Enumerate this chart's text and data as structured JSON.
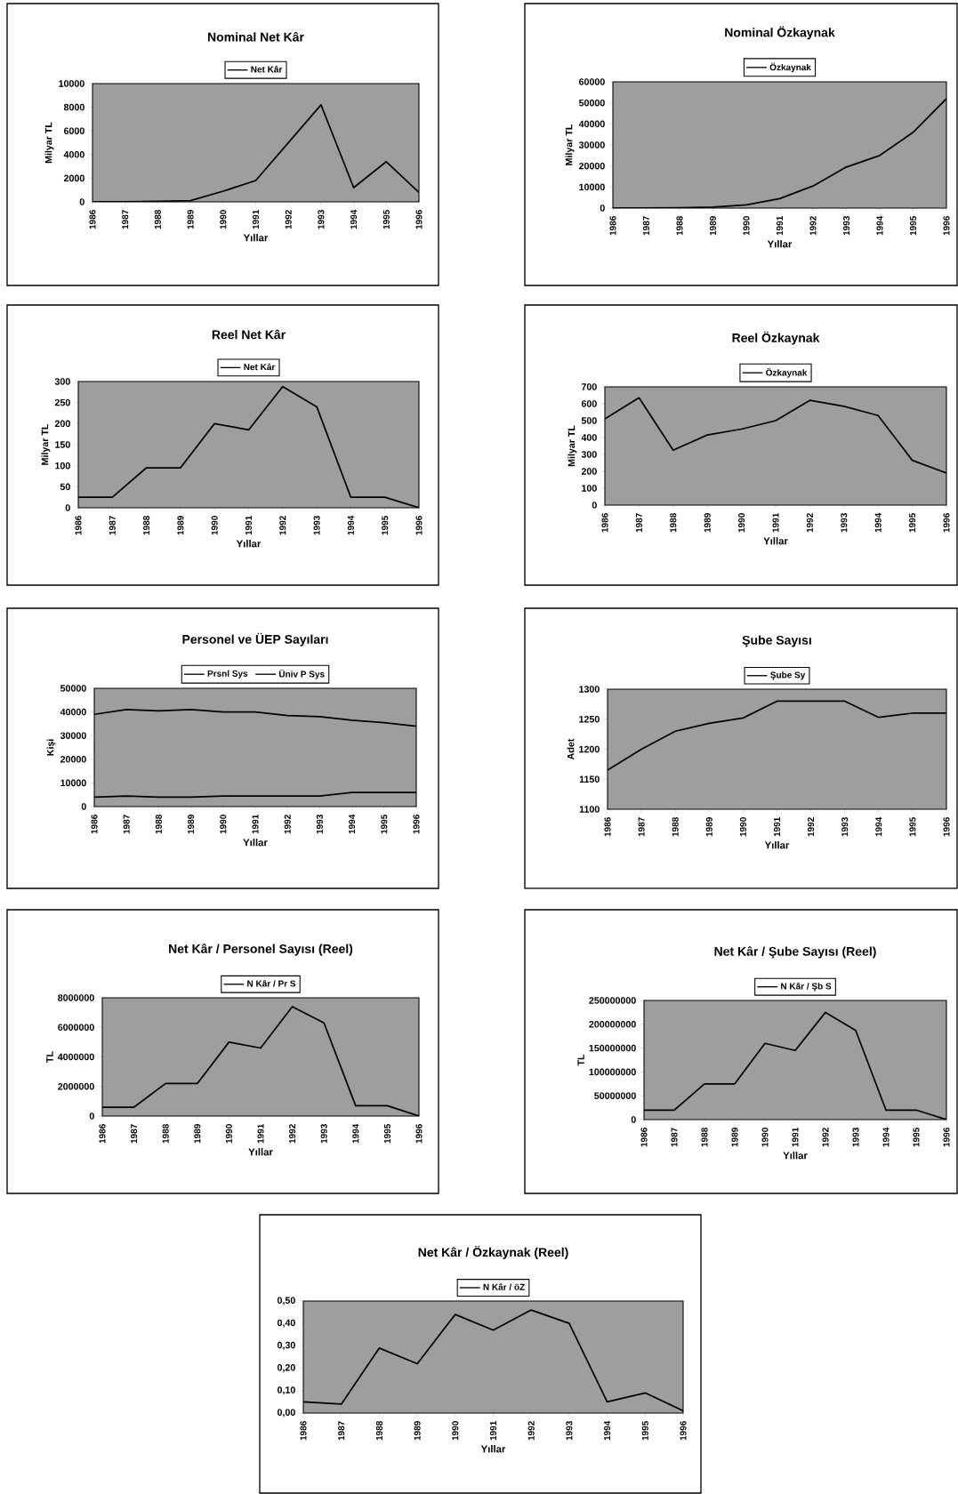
{
  "chart_data": [
    {
      "type": "line",
      "title": "Nominal Net Kâr",
      "xlabel": "Yıllar",
      "ylabel": "Milyar TL",
      "legend": "top",
      "categories": [
        "1986",
        "1987",
        "1988",
        "1989",
        "1990",
        "1991",
        "1992",
        "1993",
        "1994",
        "1995",
        "1996"
      ],
      "ylim": [
        0,
        10000
      ],
      "yticks": [
        0,
        2000,
        4000,
        6000,
        8000,
        10000
      ],
      "series": [
        {
          "name": "Net Kâr",
          "color": "#000000",
          "values": [
            0,
            10,
            50,
            100,
            900,
            1800,
            5000,
            8200,
            1200,
            3400,
            800
          ]
        }
      ]
    },
    {
      "type": "line",
      "title": "Nominal Özkaynak",
      "xlabel": "Yıllar",
      "ylabel": "Milyar TL",
      "legend": "top",
      "categories": [
        "1986",
        "1987",
        "1988",
        "1989",
        "1990",
        "1991",
        "1992",
        "1993",
        "1994",
        "1995",
        "1996"
      ],
      "ylim": [
        0,
        60000
      ],
      "yticks": [
        0,
        10000,
        20000,
        30000,
        40000,
        50000,
        60000
      ],
      "series": [
        {
          "name": "Özkaynak",
          "color": "#000000",
          "values": [
            0,
            50,
            150,
            500,
            1500,
            4500,
            10500,
            19500,
            25000,
            36000,
            52000
          ]
        }
      ]
    },
    {
      "type": "line",
      "title": "Reel Net Kâr",
      "xlabel": "Yıllar",
      "ylabel": "Milyar TL",
      "legend": "top",
      "categories": [
        "1986",
        "1987",
        "1988",
        "1989",
        "1990",
        "1991",
        "1992",
        "1993",
        "1994",
        "1995",
        "1996"
      ],
      "ylim": [
        0,
        300
      ],
      "yticks": [
        0,
        50,
        100,
        150,
        200,
        250,
        300
      ],
      "series": [
        {
          "name": "Net Kâr",
          "color": "#000000",
          "values": [
            25,
            25,
            95,
            95,
            200,
            185,
            288,
            240,
            25,
            25,
            0
          ]
        }
      ]
    },
    {
      "type": "line",
      "title": "Reel Özkaynak",
      "xlabel": "Yıllar",
      "ylabel": "Milyar TL",
      "legend": "top",
      "categories": [
        "1986",
        "1987",
        "1988",
        "1989",
        "1990",
        "1991",
        "1992",
        "1993",
        "1994",
        "1995",
        "1996"
      ],
      "ylim": [
        0,
        700
      ],
      "yticks": [
        0,
        100,
        200,
        300,
        400,
        500,
        600,
        700
      ],
      "series": [
        {
          "name": "Özkaynak",
          "color": "#000000",
          "values": [
            510,
            635,
            325,
            415,
            450,
            500,
            620,
            585,
            530,
            265,
            190
          ]
        }
      ]
    },
    {
      "type": "line",
      "title": "Personel ve ÜEP Sayıları",
      "xlabel": "Yıllar",
      "ylabel": "Kişi",
      "legend": "top",
      "categories": [
        "1986",
        "1987",
        "1988",
        "1989",
        "1990",
        "1991",
        "1992",
        "1993",
        "1994",
        "1995",
        "1996"
      ],
      "ylim": [
        0,
        50000
      ],
      "yticks": [
        0,
        10000,
        20000,
        30000,
        40000,
        50000
      ],
      "series": [
        {
          "name": "Prsnl Sys",
          "color": "#000000",
          "values": [
            39000,
            41000,
            40500,
            41000,
            40000,
            40000,
            38500,
            38000,
            36500,
            35500,
            34000
          ]
        },
        {
          "name": "Üniv P Sys",
          "color": "#000000",
          "values": [
            4000,
            4500,
            4000,
            4000,
            4500,
            4500,
            4500,
            4500,
            6000,
            6000,
            6000
          ]
        }
      ]
    },
    {
      "type": "line",
      "title": "Şube Sayısı",
      "xlabel": "Yıllar",
      "ylabel": "Adet",
      "legend": "top",
      "categories": [
        "1986",
        "1987",
        "1988",
        "1989",
        "1990",
        "1991",
        "1992",
        "1993",
        "1994",
        "1995",
        "1996"
      ],
      "ylim": [
        1100,
        1300
      ],
      "yticks": [
        1100,
        1150,
        1200,
        1250,
        1300
      ],
      "series": [
        {
          "name": "Şube Sy",
          "color": "#000000",
          "values": [
            1165,
            1200,
            1230,
            1243,
            1252,
            1280,
            1280,
            1280,
            1253,
            1260,
            1260
          ]
        }
      ]
    },
    {
      "type": "line",
      "title": "Net Kâr / Personel Sayısı (Reel)",
      "xlabel": "Yıllar",
      "ylabel": "TL",
      "legend": "top",
      "categories": [
        "1986",
        "1987",
        "1988",
        "1989",
        "1990",
        "1991",
        "1992",
        "1993",
        "1994",
        "1995",
        "1996"
      ],
      "ylim": [
        0,
        8000000
      ],
      "yticks": [
        0,
        2000000,
        4000000,
        6000000,
        8000000
      ],
      "series": [
        {
          "name": "N Kâr / Pr S",
          "color": "#000000",
          "values": [
            600000,
            600000,
            2200000,
            2200000,
            5000000,
            4600000,
            7400000,
            6300000,
            700000,
            700000,
            0
          ]
        }
      ]
    },
    {
      "type": "line",
      "title": "Net Kâr / Şube Sayısı (Reel)",
      "xlabel": "Yıllar",
      "ylabel": "TL",
      "legend": "top",
      "categories": [
        "1986",
        "1987",
        "1988",
        "1989",
        "1990",
        "1991",
        "1992",
        "1993",
        "1994",
        "1995",
        "1996"
      ],
      "ylim": [
        0,
        250000000
      ],
      "yticks": [
        0,
        50000000,
        100000000,
        150000000,
        200000000,
        250000000
      ],
      "series": [
        {
          "name": "N Kâr / Şb S",
          "color": "#000000",
          "values": [
            20000000,
            20000000,
            75000000,
            75000000,
            160000000,
            145000000,
            225000000,
            187000000,
            20000000,
            20000000,
            0
          ]
        }
      ]
    },
    {
      "type": "line",
      "title": "Net Kâr / Özkaynak (Reel)",
      "xlabel": "Yıllar",
      "ylabel": null,
      "legend": "top",
      "categories": [
        "1986",
        "1987",
        "1988",
        "1989",
        "1990",
        "1991",
        "1992",
        "1993",
        "1994",
        "1995",
        "1996"
      ],
      "ylim": [
        0,
        0.5
      ],
      "yticks": [
        {
          "value": 0,
          "label": "0,00"
        },
        {
          "value": 0.1,
          "label": "0,10"
        },
        {
          "value": 0.2,
          "label": "0,20"
        },
        {
          "value": 0.3,
          "label": "0,30"
        },
        {
          "value": 0.4,
          "label": "0,40"
        },
        {
          "value": 0.5,
          "label": "0,50"
        }
      ],
      "series": [
        {
          "name": "N Kâr / öZ",
          "color": "#000000",
          "values": [
            0.05,
            0.04,
            0.29,
            0.22,
            0.44,
            0.37,
            0.46,
            0.4,
            0.05,
            0.09,
            0.01
          ]
        }
      ]
    }
  ]
}
